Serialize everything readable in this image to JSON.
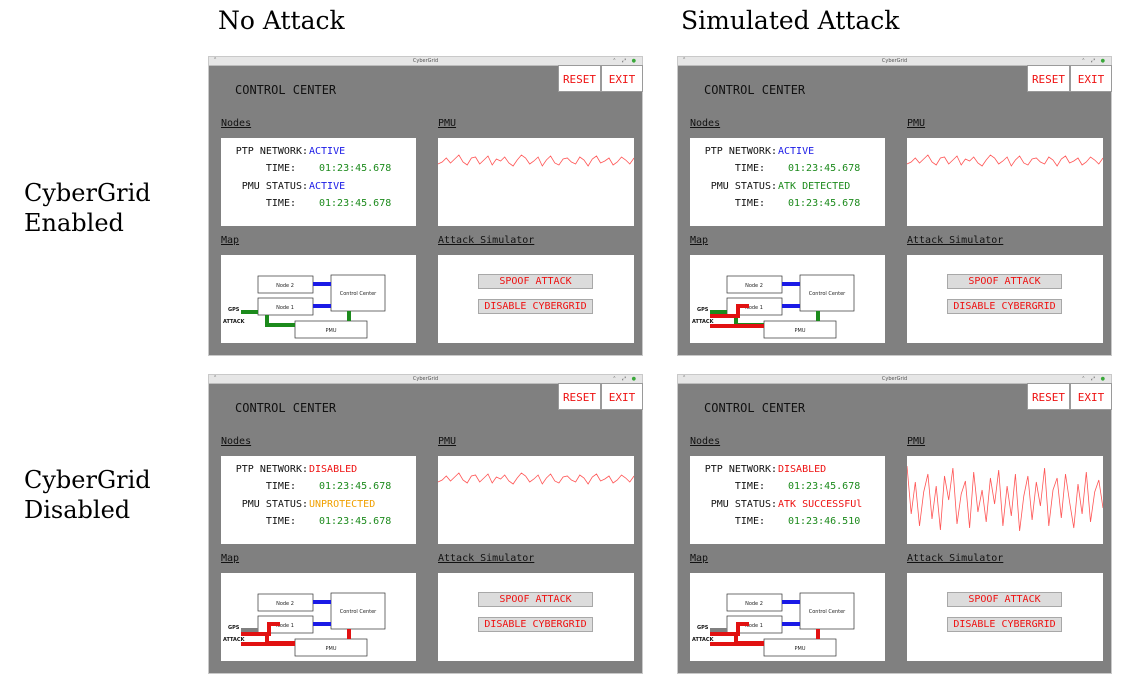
{
  "column_headers": [
    "No Attack",
    "Simulated Attack"
  ],
  "row_headers": [
    {
      "line1": "CyberGrid",
      "line2": "Enabled"
    },
    {
      "line1": "CyberGrid",
      "line2": "Disabled"
    }
  ],
  "window": {
    "title": "CyberGrid",
    "menu_glyph": "⌃",
    "controls_glyph": "⌃ ⤢"
  },
  "ui": {
    "control_center": "CONTROL CENTER",
    "reset": "RESET",
    "exit": "EXIT",
    "nodes_label": "Nodes",
    "pmu_label": "PMU",
    "map_label": "Map",
    "simulator_label": "Attack Simulator",
    "spoof_button": "SPOOF ATTACK",
    "disable_button": "DISABLE CYBERGRID",
    "ptp_network_label": "PTP NETWORK:",
    "time_label": "TIME:",
    "pmu_status_label": "PMU STATUS:"
  },
  "map_labels": {
    "node2": "Node 2",
    "node1": "Node 1",
    "control_center": "Control Center",
    "pmu": "PMU",
    "gps": "GPS",
    "attack": "ATTACK"
  },
  "colors": {
    "panel_bg": "#808080",
    "link_blue": "#1a1ae6",
    "gps_green": "#1c8a1c",
    "attack_red": "#e11111",
    "disabled_gray": "#808080",
    "signal": "#ff5555"
  },
  "panels": [
    {
      "id": "enabled-no-attack",
      "ptp_network": "ACTIVE",
      "ptp_color": "blue",
      "time1": "01:23:45.678",
      "pmu_status": "ACTIVE",
      "pmu_color": "blue",
      "time2": "01:23:45.678",
      "gps_link": "green",
      "attack_link": "none",
      "pmu_link": "green",
      "pmu_wave": "calm"
    },
    {
      "id": "enabled-attack",
      "ptp_network": "ACTIVE",
      "ptp_color": "blue",
      "time1": "01:23:45.678",
      "pmu_status": "ATK DETECTED",
      "pmu_color": "green",
      "time2": "01:23:45.678",
      "gps_link": "green",
      "attack_link": "red",
      "pmu_link": "green",
      "pmu_wave": "calm"
    },
    {
      "id": "disabled-no-attack",
      "ptp_network": "DISABLED",
      "ptp_color": "red",
      "time1": "01:23:45.678",
      "pmu_status": "UNPROTECTED",
      "pmu_color": "orange",
      "time2": "01:23:45.678",
      "gps_link": "gray",
      "attack_link": "red",
      "pmu_link": "red",
      "pmu_wave": "calm"
    },
    {
      "id": "disabled-attack",
      "ptp_network": "DISABLED",
      "ptp_color": "red",
      "time1": "01:23:45.678",
      "pmu_status": "ATK SUCCESSFUl",
      "pmu_color": "red",
      "time2": "01:23:46.510",
      "gps_link": "gray",
      "attack_link": "red",
      "pmu_link": "red",
      "pmu_wave": "attacked"
    }
  ]
}
